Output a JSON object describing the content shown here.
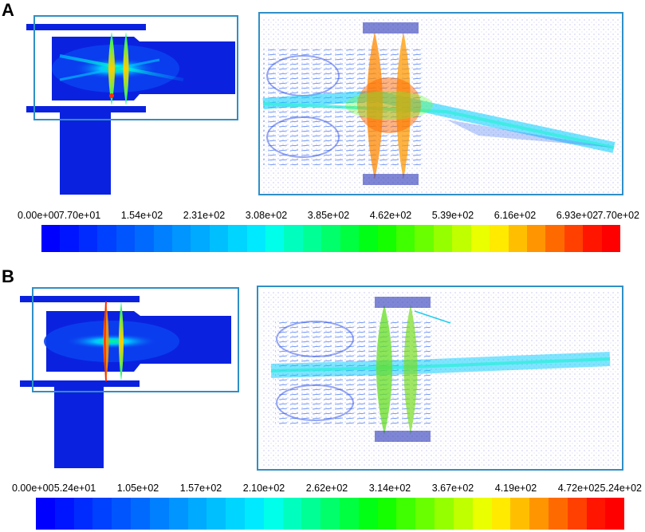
{
  "panels": [
    {
      "label": "A",
      "scale_labels": [
        "0.00e+00",
        "7.70e+01",
        "1.54e+02",
        "2.31e+02",
        "3.08e+02",
        "3.85e+02",
        "4.62e+02",
        "5.39e+02",
        "6.16e+02",
        "6.93e+02",
        "7.70e+02"
      ],
      "scale_min": 0,
      "scale_max": 770
    },
    {
      "label": "B",
      "scale_labels": [
        "0.00e+00",
        "5.24e+01",
        "1.05e+02",
        "1.57e+02",
        "2.10e+02",
        "2.62e+02",
        "3.14e+02",
        "3.67e+02",
        "4.19e+02",
        "4.72e+02",
        "5.24e+02"
      ],
      "scale_min": 0,
      "scale_max": 524
    }
  ],
  "colors": {
    "frame": "#2f8fc6",
    "field_base": "#0a22e0",
    "colormap": [
      "#0000ff",
      "#0015ff",
      "#002bff",
      "#0040ff",
      "#0055ff",
      "#006aff",
      "#0080ff",
      "#0095ff",
      "#00aaff",
      "#00bfff",
      "#00d5ff",
      "#00eaff",
      "#00ffea",
      "#00ffbf",
      "#00ff95",
      "#00ff6a",
      "#00ff40",
      "#00ff15",
      "#15ff00",
      "#40ff00",
      "#6aff00",
      "#95ff00",
      "#bfff00",
      "#eaff00",
      "#ffea00",
      "#ffbf00",
      "#ff9500",
      "#ff6a00",
      "#ff4000",
      "#ff1500",
      "#ff0000"
    ]
  },
  "icons": [
    "contour-plot-icon",
    "vector-plot-icon"
  ]
}
